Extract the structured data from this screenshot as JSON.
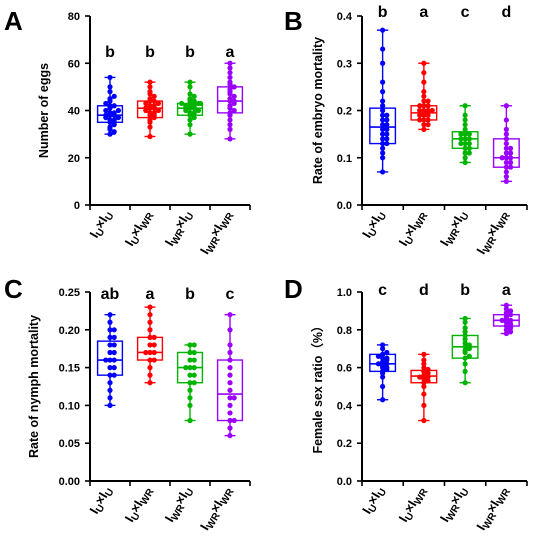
{
  "figure": {
    "colors": [
      "#0000ff",
      "#ff0000",
      "#00b400",
      "#9b00ff"
    ]
  },
  "chart_data": [
    {
      "panel": "A",
      "type": "box",
      "ylabel": "Number of eggs",
      "ylim": [
        0,
        80
      ],
      "yticks": [
        0,
        20,
        40,
        60,
        80
      ],
      "ytick_labels": [
        "0",
        "20",
        "40",
        "60",
        "80"
      ],
      "categories": [
        {
          "main": "I",
          "sub1": "U",
          "x": "×I",
          "sub2": "U"
        },
        {
          "main": "I",
          "sub1": "U",
          "x": "×I",
          "sub2": "WR"
        },
        {
          "main": "I",
          "sub1": "WR",
          "x": "×I",
          "sub2": "U"
        },
        {
          "main": "I",
          "sub1": "WR",
          "x": "×I",
          "sub2": "WR"
        }
      ],
      "significance": [
        "b",
        "b",
        "b",
        "a"
      ],
      "boxes": [
        {
          "min": 30,
          "q1": 35,
          "median": 38,
          "q3": 42,
          "max": 54
        },
        {
          "min": 29,
          "q1": 37,
          "median": 41,
          "q3": 44,
          "max": 52
        },
        {
          "min": 30,
          "q1": 38,
          "median": 41,
          "q3": 43,
          "max": 52
        },
        {
          "min": 28,
          "q1": 39,
          "median": 44,
          "q3": 50,
          "max": 60
        }
      ],
      "points": [
        [
          30,
          31,
          32,
          33,
          34,
          35,
          35,
          36,
          36,
          37,
          37,
          38,
          38,
          38,
          39,
          39,
          40,
          40,
          41,
          42,
          42,
          43,
          44,
          45,
          46,
          48,
          50,
          54
        ],
        [
          29,
          33,
          35,
          36,
          37,
          38,
          38,
          39,
          39,
          40,
          40,
          41,
          41,
          41,
          42,
          42,
          43,
          43,
          44,
          44,
          45,
          46,
          47,
          48,
          50,
          52
        ],
        [
          30,
          34,
          36,
          37,
          38,
          39,
          39,
          40,
          40,
          41,
          41,
          41,
          42,
          42,
          42,
          43,
          43,
          43,
          44,
          44,
          45,
          46,
          47,
          50,
          52
        ],
        [
          28,
          32,
          34,
          36,
          38,
          39,
          40,
          41,
          42,
          43,
          44,
          44,
          45,
          46,
          47,
          48,
          49,
          50,
          51,
          52,
          54,
          56,
          58,
          60
        ]
      ]
    },
    {
      "panel": "B",
      "type": "box",
      "ylabel": "Rate of embryo mortality",
      "ylim": [
        0,
        0.4
      ],
      "yticks": [
        0,
        0.1,
        0.2,
        0.3,
        0.4
      ],
      "ytick_labels": [
        "0.0",
        "0.1",
        "0.2",
        "0.3",
        "0.4"
      ],
      "categories": [
        {
          "main": "I",
          "sub1": "U",
          "x": "×I",
          "sub2": "U"
        },
        {
          "main": "I",
          "sub1": "U",
          "x": "×I",
          "sub2": "WR"
        },
        {
          "main": "I",
          "sub1": "WR",
          "x": "×I",
          "sub2": "U"
        },
        {
          "main": "I",
          "sub1": "WR",
          "x": "×I",
          "sub2": "WR"
        }
      ],
      "significance": [
        "b",
        "a",
        "c",
        "d"
      ],
      "boxes": [
        {
          "min": 0.07,
          "q1": 0.13,
          "median": 0.165,
          "q3": 0.205,
          "max": 0.37
        },
        {
          "min": 0.16,
          "q1": 0.18,
          "median": 0.195,
          "q3": 0.21,
          "max": 0.3
        },
        {
          "min": 0.09,
          "q1": 0.12,
          "median": 0.14,
          "q3": 0.155,
          "max": 0.21
        },
        {
          "min": 0.05,
          "q1": 0.08,
          "median": 0.1,
          "q3": 0.14,
          "max": 0.21
        }
      ],
      "points": [
        [
          0.07,
          0.1,
          0.11,
          0.12,
          0.13,
          0.13,
          0.14,
          0.14,
          0.15,
          0.15,
          0.16,
          0.16,
          0.17,
          0.17,
          0.18,
          0.18,
          0.19,
          0.19,
          0.2,
          0.21,
          0.22,
          0.24,
          0.26,
          0.3,
          0.33,
          0.37
        ],
        [
          0.16,
          0.17,
          0.17,
          0.18,
          0.18,
          0.18,
          0.19,
          0.19,
          0.19,
          0.2,
          0.2,
          0.2,
          0.2,
          0.21,
          0.21,
          0.21,
          0.22,
          0.22,
          0.23,
          0.24,
          0.26,
          0.28,
          0.3
        ],
        [
          0.09,
          0.1,
          0.11,
          0.11,
          0.12,
          0.12,
          0.13,
          0.13,
          0.13,
          0.14,
          0.14,
          0.14,
          0.15,
          0.15,
          0.15,
          0.16,
          0.17,
          0.18,
          0.19,
          0.21
        ],
        [
          0.05,
          0.06,
          0.07,
          0.08,
          0.08,
          0.09,
          0.09,
          0.1,
          0.1,
          0.1,
          0.11,
          0.11,
          0.12,
          0.12,
          0.13,
          0.14,
          0.15,
          0.16,
          0.18,
          0.21
        ]
      ]
    },
    {
      "panel": "C",
      "type": "box",
      "ylabel": "Rate of nymph mortality",
      "ylim": [
        0,
        0.25
      ],
      "yticks": [
        0,
        0.05,
        0.1,
        0.15,
        0.2,
        0.25
      ],
      "ytick_labels": [
        "0.00",
        "0.05",
        "0.10",
        "0.15",
        "0.20",
        "0.25"
      ],
      "categories": [
        {
          "main": "I",
          "sub1": "U",
          "x": "×I",
          "sub2": "U"
        },
        {
          "main": "I",
          "sub1": "U",
          "x": "×I",
          "sub2": "WR"
        },
        {
          "main": "I",
          "sub1": "WR",
          "x": "×I",
          "sub2": "U"
        },
        {
          "main": "I",
          "sub1": "WR",
          "x": "×I",
          "sub2": "WR"
        }
      ],
      "significance": [
        "ab",
        "a",
        "b",
        "c"
      ],
      "boxes": [
        {
          "min": 0.1,
          "q1": 0.14,
          "median": 0.16,
          "q3": 0.185,
          "max": 0.22
        },
        {
          "min": 0.13,
          "q1": 0.16,
          "median": 0.17,
          "q3": 0.19,
          "max": 0.23
        },
        {
          "min": 0.08,
          "q1": 0.13,
          "median": 0.15,
          "q3": 0.17,
          "max": 0.18
        },
        {
          "min": 0.06,
          "q1": 0.08,
          "median": 0.115,
          "q3": 0.16,
          "max": 0.22
        }
      ],
      "points": [
        [
          0.1,
          0.11,
          0.12,
          0.13,
          0.14,
          0.14,
          0.15,
          0.15,
          0.16,
          0.16,
          0.16,
          0.17,
          0.17,
          0.18,
          0.18,
          0.19,
          0.19,
          0.2,
          0.2,
          0.21,
          0.22
        ],
        [
          0.13,
          0.14,
          0.15,
          0.16,
          0.16,
          0.17,
          0.17,
          0.17,
          0.18,
          0.18,
          0.19,
          0.19,
          0.2,
          0.21,
          0.22,
          0.23
        ],
        [
          0.08,
          0.1,
          0.11,
          0.12,
          0.13,
          0.13,
          0.14,
          0.14,
          0.15,
          0.15,
          0.15,
          0.16,
          0.16,
          0.17,
          0.17,
          0.18,
          0.18
        ],
        [
          0.06,
          0.07,
          0.08,
          0.08,
          0.09,
          0.1,
          0.11,
          0.11,
          0.12,
          0.13,
          0.14,
          0.15,
          0.16,
          0.17,
          0.18,
          0.2,
          0.22
        ]
      ]
    },
    {
      "panel": "D",
      "type": "box",
      "ylabel": "Female sex ratio（%）",
      "ylim": [
        0,
        1.0
      ],
      "yticks": [
        0,
        0.2,
        0.4,
        0.6,
        0.8,
        1.0
      ],
      "ytick_labels": [
        "0.0",
        "0.2",
        "0.4",
        "0.6",
        "0.8",
        "1.0"
      ],
      "categories": [
        {
          "main": "I",
          "sub1": "U",
          "x": "×I",
          "sub2": "U"
        },
        {
          "main": "I",
          "sub1": "U",
          "x": "×I",
          "sub2": "WR"
        },
        {
          "main": "I",
          "sub1": "WR",
          "x": "×I",
          "sub2": "U"
        },
        {
          "main": "I",
          "sub1": "WR",
          "x": "×I",
          "sub2": "WR"
        }
      ],
      "significance": [
        "c",
        "d",
        "b",
        "a"
      ],
      "boxes": [
        {
          "min": 0.43,
          "q1": 0.58,
          "median": 0.62,
          "q3": 0.67,
          "max": 0.72
        },
        {
          "min": 0.32,
          "q1": 0.52,
          "median": 0.555,
          "q3": 0.585,
          "max": 0.67
        },
        {
          "min": 0.52,
          "q1": 0.65,
          "median": 0.71,
          "q3": 0.77,
          "max": 0.86
        },
        {
          "min": 0.78,
          "q1": 0.82,
          "median": 0.85,
          "q3": 0.88,
          "max": 0.93
        }
      ],
      "points": [
        [
          0.43,
          0.5,
          0.55,
          0.57,
          0.58,
          0.59,
          0.6,
          0.6,
          0.61,
          0.62,
          0.62,
          0.63,
          0.64,
          0.65,
          0.65,
          0.66,
          0.67,
          0.68,
          0.7,
          0.72
        ],
        [
          0.32,
          0.4,
          0.46,
          0.5,
          0.52,
          0.53,
          0.54,
          0.55,
          0.55,
          0.56,
          0.57,
          0.58,
          0.59,
          0.6,
          0.62,
          0.64,
          0.67
        ],
        [
          0.52,
          0.58,
          0.62,
          0.65,
          0.66,
          0.68,
          0.69,
          0.7,
          0.71,
          0.72,
          0.73,
          0.75,
          0.77,
          0.79,
          0.81,
          0.84,
          0.86
        ],
        [
          0.78,
          0.79,
          0.8,
          0.81,
          0.82,
          0.83,
          0.84,
          0.85,
          0.85,
          0.86,
          0.87,
          0.88,
          0.89,
          0.9,
          0.91,
          0.93
        ]
      ]
    }
  ]
}
